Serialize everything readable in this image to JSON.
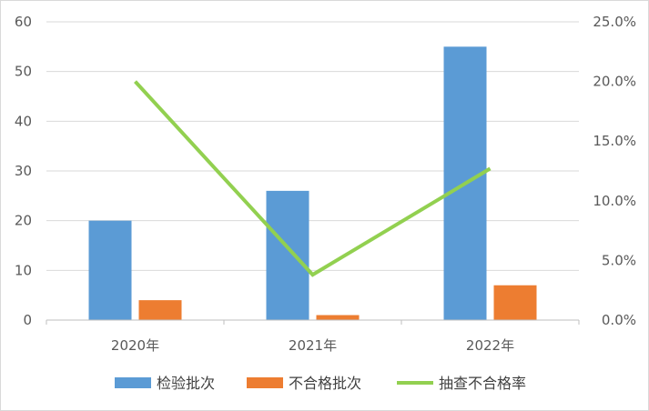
{
  "chart_data": {
    "type": "bar",
    "categories": [
      "2020年",
      "2021年",
      "2022年"
    ],
    "series": [
      {
        "name": "检验批次",
        "kind": "bar",
        "axis": "left",
        "color": "#5B9BD5",
        "values": [
          20,
          26,
          55
        ]
      },
      {
        "name": "不合格批次",
        "kind": "bar",
        "axis": "left",
        "color": "#ED7D31",
        "values": [
          4,
          1,
          7
        ]
      },
      {
        "name": "抽查不合格率",
        "kind": "line",
        "axis": "right",
        "color": "#92D050",
        "values": [
          0.2,
          0.038,
          0.127
        ]
      }
    ],
    "y_left": {
      "min": 0,
      "max": 60,
      "ticks": [
        "0",
        "10",
        "20",
        "30",
        "40",
        "50",
        "60"
      ]
    },
    "y_right": {
      "min": 0,
      "max": 0.25,
      "ticks": [
        "0.0%",
        "5.0%",
        "10.0%",
        "15.0%",
        "20.0%",
        "25.0%"
      ]
    },
    "grid": true,
    "legend_position": "bottom"
  }
}
